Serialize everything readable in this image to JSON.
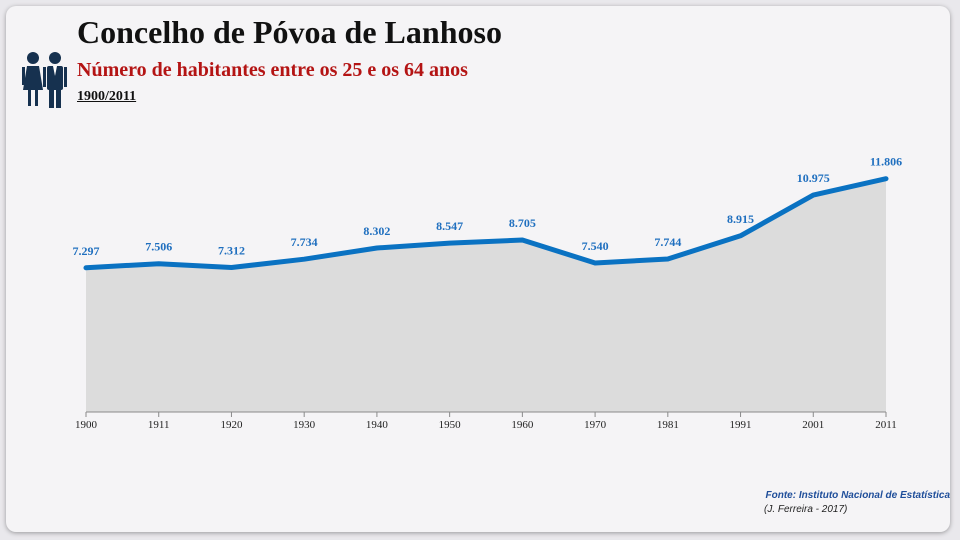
{
  "header": {
    "title": "Concelho de Póvoa de Lanhoso",
    "subtitle": "Número de habitantes entre os 25 e os 64 anos",
    "period": "1900/2011",
    "icon": "people-icon"
  },
  "chart_data": {
    "type": "area",
    "title": "",
    "xlabel": "",
    "ylabel": "",
    "categories": [
      "1900",
      "1911",
      "1920",
      "1930",
      "1940",
      "1950",
      "1960",
      "1970",
      "1981",
      "1991",
      "2001",
      "2011"
    ],
    "values": [
      7297,
      7506,
      7312,
      7734,
      8302,
      8547,
      8705,
      7540,
      7744,
      8915,
      10975,
      11806
    ],
    "value_labels": [
      "7.297",
      "7.506",
      "7.312",
      "7.734",
      "8.302",
      "8.547",
      "8.705",
      "7.540",
      "7.744",
      "8.915",
      "10.975",
      "11.806"
    ],
    "ylim": [
      0,
      12500
    ],
    "grid": false,
    "line_color": "#0a72c2",
    "area_color": "#dcdcdc",
    "label_color": "#1f6fbf"
  },
  "footer": {
    "source": "Fonte: Instituto Nacional de Estatística",
    "author": "(J. Ferreira - 2017)"
  }
}
